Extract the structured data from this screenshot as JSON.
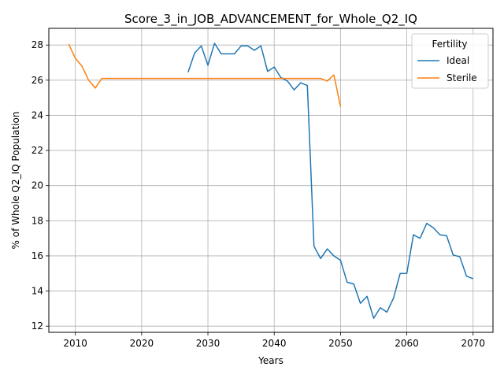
{
  "chart_data": {
    "type": "line",
    "title": "Score_3_in_JOB_ADVANCEMENT_for_Whole_Q2_IQ",
    "xlabel": "Years",
    "ylabel": "% of Whole Q2_IQ Population",
    "xlim": [
      2006,
      2073
    ],
    "ylim": [
      11.65,
      28.95
    ],
    "xticks": [
      2010,
      2020,
      2030,
      2040,
      2050,
      2060,
      2070
    ],
    "yticks": [
      12,
      14,
      16,
      18,
      20,
      22,
      24,
      26,
      28
    ],
    "grid": true,
    "legend": {
      "title": "Fertility",
      "placement": "top-right"
    },
    "series": [
      {
        "name": "Ideal",
        "color": "#1f77b4",
        "x": [
          2027,
          2028,
          2029,
          2030,
          2031,
          2032,
          2033,
          2034,
          2035,
          2036,
          2037,
          2038,
          2039,
          2040,
          2041,
          2042,
          2043,
          2044,
          2045,
          2046,
          2047,
          2048,
          2049,
          2050,
          2051,
          2052,
          2053,
          2054,
          2055,
          2056,
          2057,
          2058,
          2059,
          2060,
          2061,
          2062,
          2063,
          2064,
          2065,
          2066,
          2067,
          2068,
          2069,
          2070
        ],
        "y": [
          26.45,
          27.55,
          27.95,
          26.85,
          28.1,
          27.5,
          27.5,
          27.5,
          27.95,
          27.95,
          27.7,
          27.95,
          26.5,
          26.75,
          26.15,
          25.95,
          25.45,
          25.85,
          25.7,
          16.55,
          15.85,
          16.4,
          16.0,
          15.75,
          14.5,
          14.4,
          13.3,
          13.7,
          12.45,
          13.05,
          12.8,
          13.6,
          15.0,
          15.0,
          17.2,
          17.0,
          17.85,
          17.6,
          17.2,
          17.15,
          16.05,
          15.95,
          14.85,
          14.7
        ]
      },
      {
        "name": "Sterile",
        "color": "#ff7f0e",
        "x": [
          2009,
          2010,
          2011,
          2012,
          2013,
          2014,
          2015,
          2016,
          2017,
          2018,
          2019,
          2020,
          2021,
          2022,
          2023,
          2024,
          2025,
          2026,
          2027,
          2028,
          2029,
          2030,
          2031,
          2032,
          2033,
          2034,
          2035,
          2036,
          2037,
          2038,
          2039,
          2040,
          2041,
          2042,
          2043,
          2044,
          2045,
          2046,
          2047,
          2048,
          2049,
          2050
        ],
        "y": [
          28.05,
          27.25,
          26.8,
          26.0,
          25.55,
          26.1,
          26.1,
          26.1,
          26.1,
          26.1,
          26.1,
          26.1,
          26.1,
          26.1,
          26.1,
          26.1,
          26.1,
          26.1,
          26.1,
          26.1,
          26.1,
          26.1,
          26.1,
          26.1,
          26.1,
          26.1,
          26.1,
          26.1,
          26.1,
          26.1,
          26.1,
          26.1,
          26.1,
          26.1,
          26.1,
          26.1,
          26.1,
          26.1,
          26.1,
          25.95,
          26.3,
          24.5
        ]
      }
    ]
  }
}
